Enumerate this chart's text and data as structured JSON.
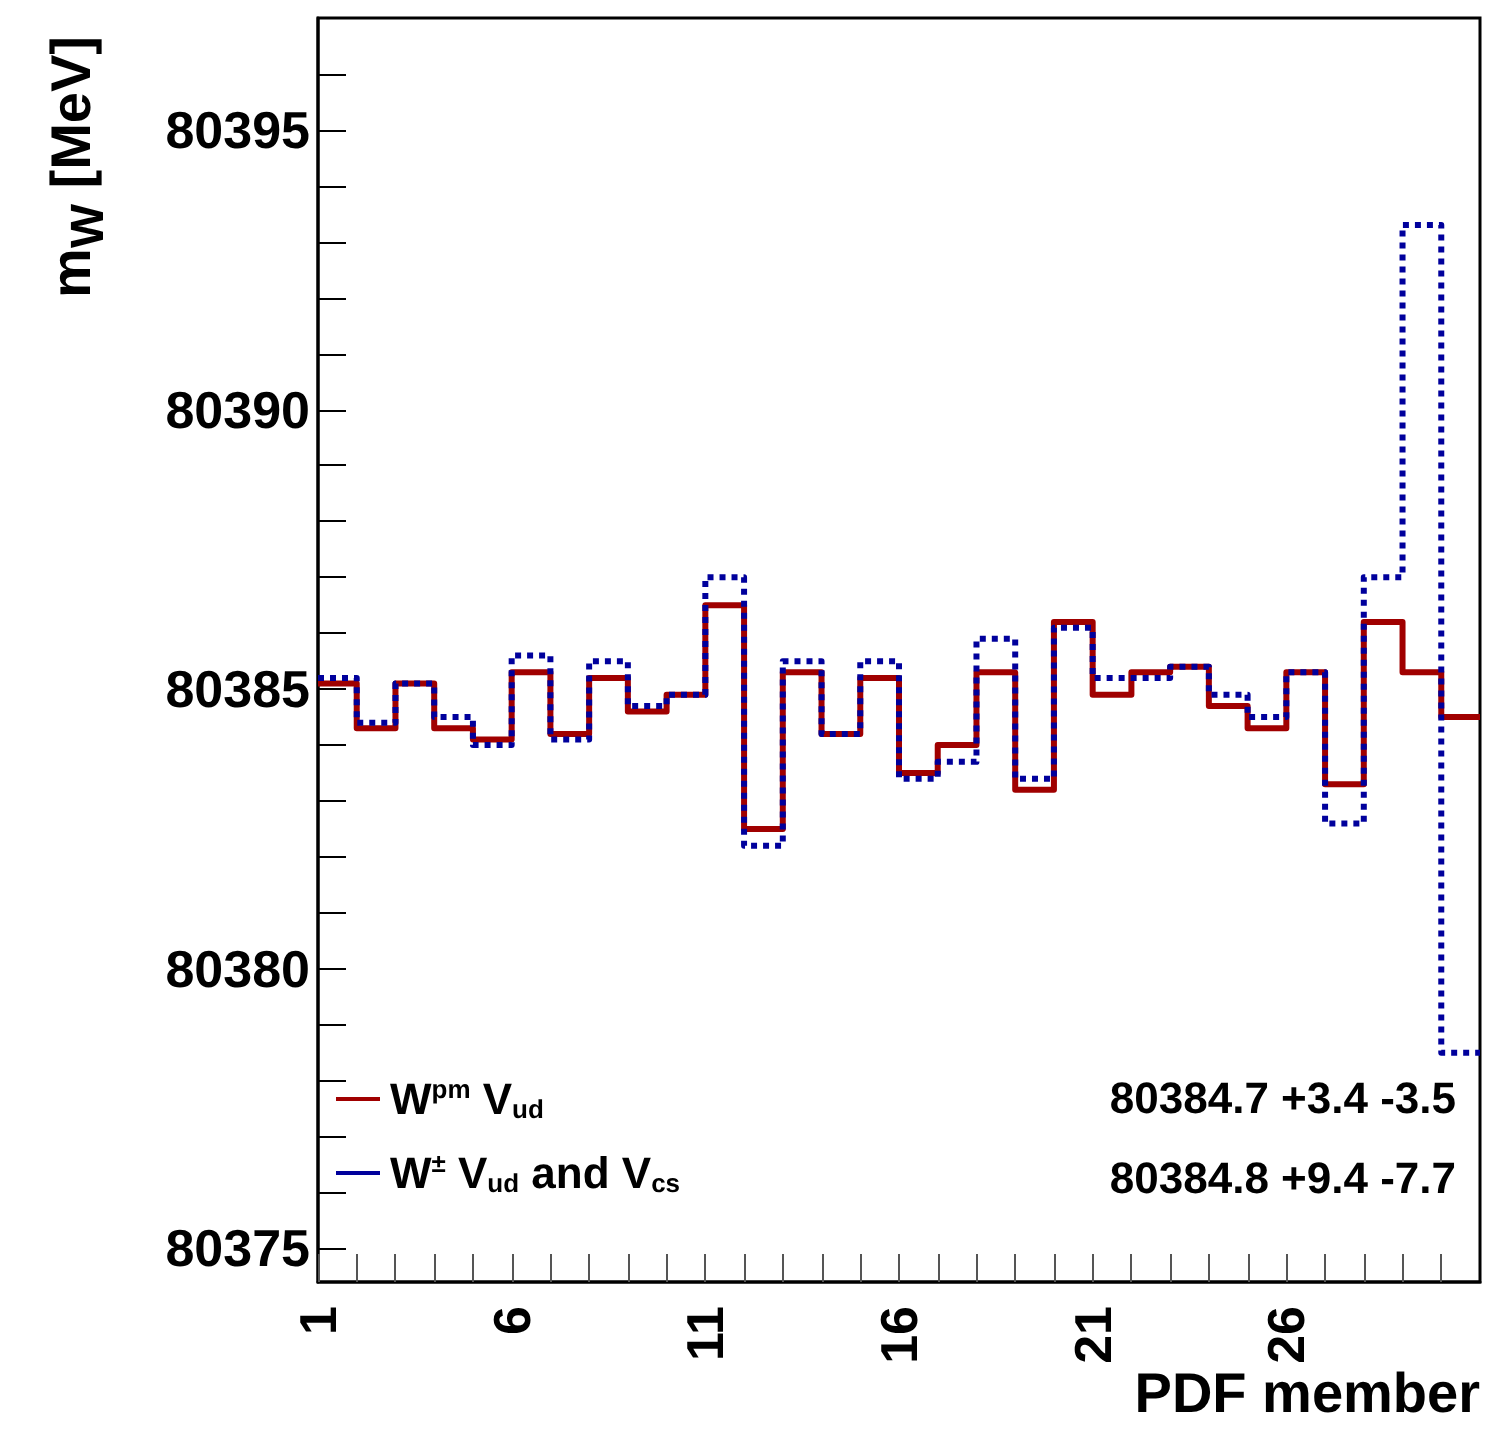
{
  "chart_data": {
    "type": "histogram",
    "xlabel": "PDF member",
    "ylabel": "m$_{W}$ [MeV]",
    "bins": [
      1,
      2,
      3,
      4,
      5,
      6,
      7,
      8,
      9,
      10,
      11,
      12,
      13,
      14,
      15,
      16,
      17,
      18,
      19,
      20,
      21,
      22,
      23,
      24,
      25,
      26,
      27,
      28,
      29,
      30,
      31
    ],
    "series": [
      {
        "name": "W$^{pm}$ V$_{ud}$",
        "color": "#a00000",
        "line_style": "solid",
        "values": [
          80385.1,
          80384.3,
          80385.1,
          80384.3,
          80384.1,
          80385.3,
          80384.2,
          80385.2,
          80384.6,
          80384.9,
          80386.5,
          80382.5,
          80385.3,
          80384.2,
          80385.2,
          80383.5,
          80384.0,
          80385.3,
          80383.2,
          80386.2,
          80384.9,
          80385.3,
          80385.4,
          80384.7,
          80384.3,
          80385.3,
          80383.3,
          80386.2,
          80385.3,
          80384.5
        ]
      },
      {
        "name": "W$^{±}$ V$_{ud}$ and V$_{cs}$",
        "color": "#00009c",
        "line_style": "dotted",
        "values": [
          80385.2,
          80384.4,
          80385.1,
          80384.5,
          80384.0,
          80385.6,
          80384.1,
          80385.5,
          80384.7,
          80384.9,
          80387.0,
          80382.2,
          80385.5,
          80384.2,
          80385.5,
          80383.4,
          80383.7,
          80385.9,
          80383.4,
          80386.1,
          80385.2,
          80385.2,
          80385.4,
          80384.9,
          80384.5,
          80385.3,
          80382.6,
          80387.0,
          80393.3,
          80378.5
        ]
      }
    ],
    "xlim": [
      1,
      31
    ],
    "xticks": [
      1,
      {
        "value": 2,
        "label": null
      },
      {
        "value": 3,
        "label": null
      },
      {
        "value": 4,
        "label": null
      },
      {
        "value": 5,
        "label": null
      },
      6,
      {
        "value": 7,
        "label": null
      },
      {
        "value": 8,
        "label": null
      },
      {
        "value": 9,
        "label": null
      },
      {
        "value": 10,
        "label": null
      },
      11,
      {
        "value": 12,
        "label": null
      },
      {
        "value": 13,
        "label": null
      },
      {
        "value": 14,
        "label": null
      },
      {
        "value": 15,
        "label": null
      },
      16,
      {
        "value": 17,
        "label": null
      },
      {
        "value": 18,
        "label": null
      },
      {
        "value": 19,
        "label": null
      },
      {
        "value": 20,
        "label": null
      },
      21,
      {
        "value": 22,
        "label": null
      },
      {
        "value": 23,
        "label": null
      },
      {
        "value": 24,
        "label": null
      },
      {
        "value": 25,
        "label": null
      },
      26,
      {
        "value": 27,
        "label": null
      },
      {
        "value": 28,
        "label": null
      },
      {
        "value": 29,
        "label": null
      },
      {
        "value": 30,
        "label": null
      }
    ],
    "ylim": [
      80374.4,
      80397
    ],
    "yticks": [
      80375,
      {
        "value": 80376,
        "label": null
      },
      {
        "value": 80377,
        "label": null
      },
      {
        "value": 80378,
        "label": null
      },
      {
        "value": 80379,
        "label": null
      },
      80380,
      {
        "value": 80381,
        "label": null
      },
      {
        "value": 80382,
        "label": null
      },
      {
        "value": 80383,
        "label": null
      },
      {
        "value": 80384,
        "label": null
      },
      80385,
      {
        "value": 80386,
        "label": null
      },
      {
        "value": 80387,
        "label": null
      },
      {
        "value": 80388,
        "label": null
      },
      {
        "value": 80389,
        "label": null
      },
      80390,
      {
        "value": 80391,
        "label": null
      },
      {
        "value": 80392,
        "label": null
      },
      {
        "value": 80393,
        "label": null
      },
      {
        "value": 80394,
        "label": null
      },
      80395,
      {
        "value": 80396,
        "label": null
      }
    ],
    "annotations": [
      "80384.7 +3.4 -3.5",
      "80384.8 +9.4 -7.7"
    ],
    "legend": "bottom left",
    "grid": false
  }
}
